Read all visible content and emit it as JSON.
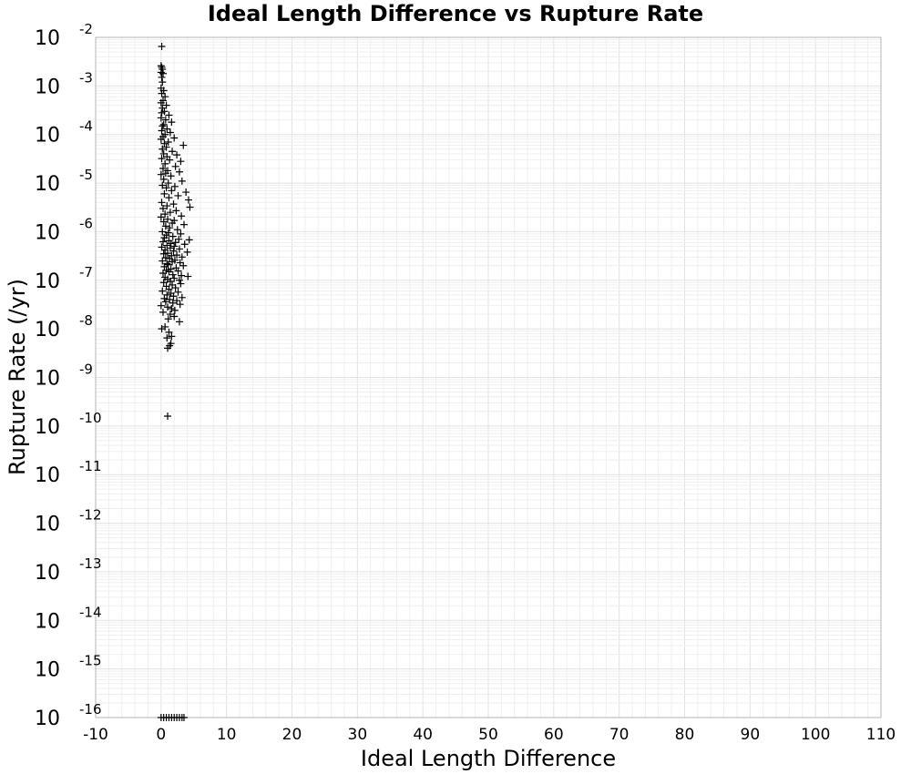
{
  "chart_data": {
    "type": "scatter",
    "title": "Ideal Length Difference vs Rupture Rate",
    "xlabel": "Ideal Length Difference",
    "ylabel": "Rupture Rate (/yr)",
    "xlim": [
      -10,
      110
    ],
    "ylim": [
      1e-16,
      0.01
    ],
    "yscale": "log",
    "grid": true,
    "marker": "+",
    "marker_color": "#000000",
    "xticks": [
      "-10",
      "0",
      "10",
      "20",
      "30",
      "40",
      "50",
      "60",
      "70",
      "80",
      "90",
      "100",
      "110"
    ],
    "yticks": [
      {
        "base": "10",
        "exp": "-2"
      },
      {
        "base": "10",
        "exp": "-3"
      },
      {
        "base": "10",
        "exp": "-4"
      },
      {
        "base": "10",
        "exp": "-5"
      },
      {
        "base": "10",
        "exp": "-6"
      },
      {
        "base": "10",
        "exp": "-7"
      },
      {
        "base": "10",
        "exp": "-8"
      },
      {
        "base": "10",
        "exp": "-9"
      },
      {
        "base": "10",
        "exp": "-10"
      },
      {
        "base": "10",
        "exp": "-11"
      },
      {
        "base": "10",
        "exp": "-12"
      },
      {
        "base": "10",
        "exp": "-13"
      },
      {
        "base": "10",
        "exp": "-14"
      },
      {
        "base": "10",
        "exp": "-15"
      },
      {
        "base": "10",
        "exp": "-16"
      }
    ],
    "points": [
      [
        0.1,
        0.0065
      ],
      [
        0.0,
        0.0026
      ],
      [
        0.1,
        0.0024
      ],
      [
        0.2,
        0.0022
      ],
      [
        0.0,
        0.0019
      ],
      [
        0.3,
        0.0018
      ],
      [
        0.1,
        0.0015
      ],
      [
        0.2,
        0.0012
      ],
      [
        0.0,
        0.0009
      ],
      [
        0.4,
        0.0008
      ],
      [
        0.1,
        0.0007
      ],
      [
        0.6,
        0.0006
      ],
      [
        0.3,
        0.0005
      ],
      [
        0.0,
        0.00045
      ],
      [
        0.8,
        0.0004
      ],
      [
        0.2,
        0.00035
      ],
      [
        0.5,
        0.0003
      ],
      [
        0.1,
        0.00028
      ],
      [
        1.2,
        0.00025
      ],
      [
        0.0,
        0.00022
      ],
      [
        0.7,
        0.0002
      ],
      [
        1.6,
        0.00018
      ],
      [
        0.4,
        0.00016
      ],
      [
        0.2,
        0.00015
      ],
      [
        0.9,
        0.00013
      ],
      [
        0.1,
        0.00012
      ],
      [
        1.4,
        0.00011
      ],
      [
        0.6,
        0.0001
      ],
      [
        0.3,
        9e-05
      ],
      [
        2.0,
        8.5e-05
      ],
      [
        0.0,
        8e-05
      ],
      [
        1.1,
        7e-05
      ],
      [
        0.5,
        6.5e-05
      ],
      [
        3.4,
        6e-05
      ],
      [
        0.8,
        5.5e-05
      ],
      [
        0.2,
        5e-05
      ],
      [
        1.7,
        4.5e-05
      ],
      [
        0.4,
        4e-05
      ],
      [
        2.4,
        3.8e-05
      ],
      [
        0.9,
        3.5e-05
      ],
      [
        0.1,
        3.2e-05
      ],
      [
        1.3,
        3e-05
      ],
      [
        3.0,
        2.8e-05
      ],
      [
        0.6,
        2.5e-05
      ],
      [
        2.2,
        2.2e-05
      ],
      [
        0.3,
        2e-05
      ],
      [
        1.0,
        1.8e-05
      ],
      [
        2.8,
        1.7e-05
      ],
      [
        0.7,
        1.6e-05
      ],
      [
        0.0,
        1.5e-05
      ],
      [
        1.5,
        1.4e-05
      ],
      [
        0.4,
        1.2e-05
      ],
      [
        3.2,
        1.1e-05
      ],
      [
        1.1,
        1e-05
      ],
      [
        0.2,
        9e-06
      ],
      [
        2.1,
        8.5e-06
      ],
      [
        0.8,
        8e-06
      ],
      [
        1.6,
        7e-06
      ],
      [
        3.8,
        6.5e-06
      ],
      [
        0.5,
        6e-06
      ],
      [
        2.6,
        5.5e-06
      ],
      [
        1.2,
        5e-06
      ],
      [
        4.2,
        4.5e-06
      ],
      [
        0.1,
        4e-06
      ],
      [
        1.9,
        3.7e-06
      ],
      [
        0.9,
        3.4e-06
      ],
      [
        4.4,
        3.2e-06
      ],
      [
        0.3,
        3e-06
      ],
      [
        2.3,
        2.7e-06
      ],
      [
        1.4,
        2.5e-06
      ],
      [
        0.6,
        2.3e-06
      ],
      [
        3.1,
        2.1e-06
      ],
      [
        0.0,
        2e-06
      ],
      [
        1.0,
        1.8e-06
      ],
      [
        2.0,
        1.7e-06
      ],
      [
        0.4,
        1.6e-06
      ],
      [
        1.7,
        1.5e-06
      ],
      [
        3.5,
        1.4e-06
      ],
      [
        0.7,
        1.3e-06
      ],
      [
        1.3,
        1.2e-06
      ],
      [
        2.5,
        1.1e-06
      ],
      [
        0.2,
        1e-06
      ],
      [
        1.1,
        9.5e-07
      ],
      [
        3.0,
        9e-07
      ],
      [
        0.8,
        8.5e-07
      ],
      [
        1.8,
        8e-07
      ],
      [
        0.5,
        7.5e-07
      ],
      [
        2.7,
        7e-07
      ],
      [
        4.3,
        6.8e-07
      ],
      [
        1.2,
        6.5e-07
      ],
      [
        0.3,
        6.2e-07
      ],
      [
        2.2,
        6e-07
      ],
      [
        1.5,
        5.7e-07
      ],
      [
        3.6,
        5.5e-07
      ],
      [
        0.9,
        5.2e-07
      ],
      [
        2.0,
        5e-07
      ],
      [
        0.1,
        4.8e-07
      ],
      [
        1.4,
        4.6e-07
      ],
      [
        2.8,
        4.4e-07
      ],
      [
        0.6,
        4.2e-07
      ],
      [
        1.9,
        4e-07
      ],
      [
        4.0,
        3.8e-07
      ],
      [
        1.0,
        3.6e-07
      ],
      [
        0.4,
        3.5e-07
      ],
      [
        2.4,
        3.3e-07
      ],
      [
        1.6,
        3.2e-07
      ],
      [
        3.2,
        3e-07
      ],
      [
        0.7,
        2.9e-07
      ],
      [
        1.3,
        2.8e-07
      ],
      [
        2.1,
        2.6e-07
      ],
      [
        0.2,
        2.5e-07
      ],
      [
        1.7,
        2.4e-07
      ],
      [
        2.9,
        2.3e-07
      ],
      [
        0.9,
        2.2e-07
      ],
      [
        1.1,
        2.1e-07
      ],
      [
        3.4,
        2e-07
      ],
      [
        0.5,
        1.9e-07
      ],
      [
        2.3,
        1.8e-07
      ],
      [
        1.5,
        1.7e-07
      ],
      [
        0.8,
        1.6e-07
      ],
      [
        2.6,
        1.55e-07
      ],
      [
        1.2,
        1.5e-07
      ],
      [
        0.3,
        1.4e-07
      ],
      [
        1.8,
        1.3e-07
      ],
      [
        3.1,
        1.25e-07
      ],
      [
        4.1,
        1.2e-07
      ],
      [
        0.6,
        1.15e-07
      ],
      [
        2.0,
        1.1e-07
      ],
      [
        1.0,
        1.05e-07
      ],
      [
        2.8,
        1e-07
      ],
      [
        1.4,
        9.5e-08
      ],
      [
        0.4,
        9e-08
      ],
      [
        3.0,
        8.5e-08
      ],
      [
        1.7,
        8e-08
      ],
      [
        0.8,
        7.5e-08
      ],
      [
        2.2,
        7e-08
      ],
      [
        1.2,
        6.5e-08
      ],
      [
        0.2,
        6e-08
      ],
      [
        2.6,
        5.7e-08
      ],
      [
        1.5,
        5.4e-08
      ],
      [
        0.9,
        5e-08
      ],
      [
        1.9,
        4.7e-08
      ],
      [
        3.2,
        4.4e-08
      ],
      [
        0.5,
        4.2e-08
      ],
      [
        1.3,
        4e-08
      ],
      [
        2.4,
        3.8e-08
      ],
      [
        0.7,
        3.6e-08
      ],
      [
        1.8,
        3.4e-08
      ],
      [
        2.9,
        3.2e-08
      ],
      [
        0.0,
        3e-08
      ],
      [
        1.0,
        2.8e-08
      ],
      [
        1.6,
        2.6e-08
      ],
      [
        2.1,
        2.4e-08
      ],
      [
        0.3,
        2.2e-08
      ],
      [
        1.4,
        2e-08
      ],
      [
        2.0,
        1.8e-08
      ],
      [
        1.1,
        1.6e-08
      ],
      [
        2.8,
        1.4e-08
      ],
      [
        0.6,
        1.1e-08
      ],
      [
        0.1,
        1e-08
      ],
      [
        1.2,
        8.5e-09
      ],
      [
        1.6,
        7e-09
      ],
      [
        0.9,
        6.5e-09
      ],
      [
        1.5,
        5e-09
      ],
      [
        1.3,
        4.5e-09
      ],
      [
        1.0,
        4e-09
      ],
      [
        1.0,
        1.6e-10
      ],
      [
        0.0,
        1e-16
      ],
      [
        0.4,
        1e-16
      ],
      [
        0.8,
        1e-16
      ],
      [
        1.2,
        1e-16
      ],
      [
        1.6,
        1e-16
      ],
      [
        2.0,
        1e-16
      ],
      [
        2.4,
        1e-16
      ],
      [
        2.8,
        1e-16
      ],
      [
        3.2,
        1e-16
      ],
      [
        3.5,
        1e-16
      ]
    ]
  }
}
